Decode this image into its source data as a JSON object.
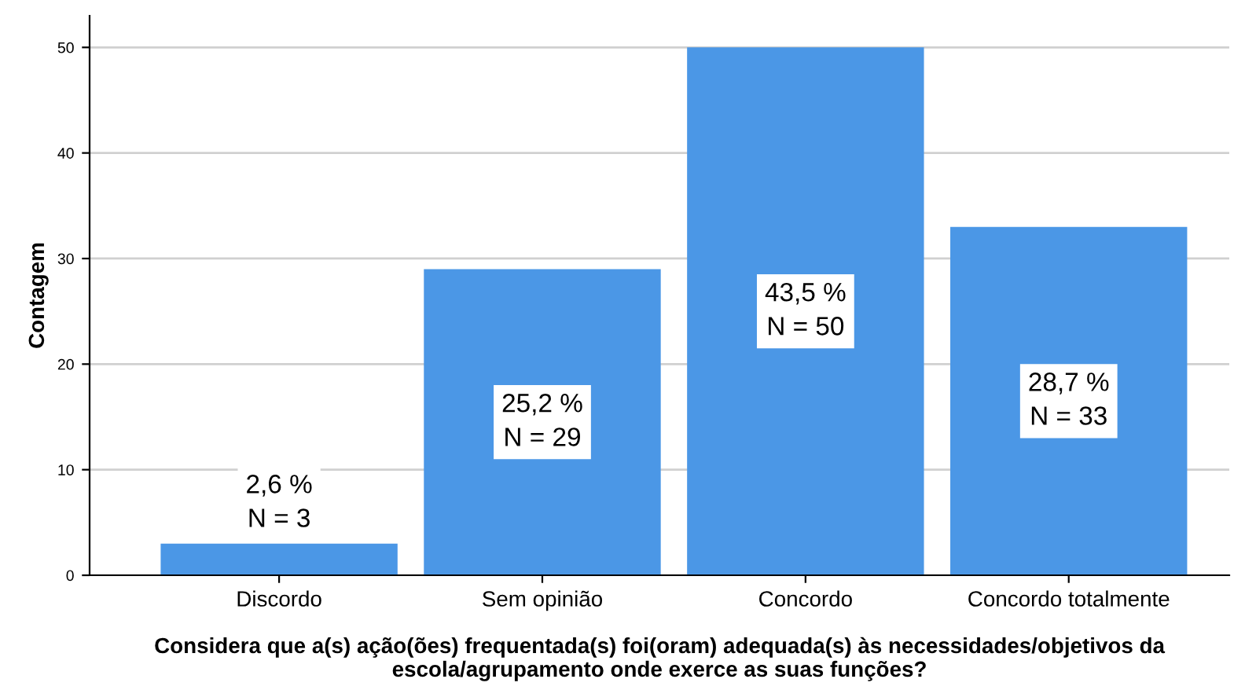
{
  "chart_data": {
    "type": "bar",
    "categories": [
      "Discordo",
      "Sem opinião",
      "Concordo",
      "Concordo totalmente"
    ],
    "values": [
      3,
      29,
      50,
      33
    ],
    "value_labels": [
      "2,6 %\nN = 3",
      "25,2 %\nN = 29",
      "43,5 %\nN = 50",
      "28,7 %\nN = 33"
    ],
    "color": "#4b97e6",
    "ylabel": "Contagem",
    "xlabel": "Considera que a(s) ação(ões) frequentada(s) foi(oram) adequada(s) às necessidades/objetivos da escola/agrupamento onde exerce as suas funções?",
    "ylim": [
      0,
      53
    ],
    "yticks": [
      0,
      10,
      20,
      30,
      40,
      50
    ],
    "grid": "y"
  }
}
